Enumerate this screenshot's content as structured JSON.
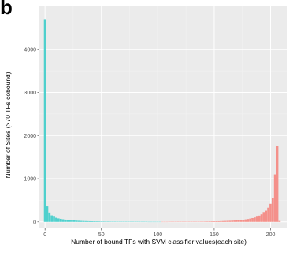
{
  "panel_label": "b",
  "colors": {
    "background": "#ffffff",
    "panel": "#ebebeb",
    "grid_major": "#ffffff",
    "grid_minor": "#f2f2f2",
    "low_bars": "#4fd0cd",
    "high_bars": "#f4908a"
  },
  "chart_data": {
    "type": "bar",
    "title": "",
    "xlabel": "Number of bound TFs with SVM classifier values(each site)",
    "ylabel": "Number of Sites  (>70 TFs cobound)",
    "x_ticks": [
      0,
      50,
      100,
      150,
      200
    ],
    "y_ticks": [
      0,
      1000,
      2000,
      3000,
      4000
    ],
    "xlim": [
      -5,
      215
    ],
    "ylim": [
      -150,
      5000
    ],
    "bin_width": 2,
    "grid": true,
    "legend": "none",
    "split_x": 104,
    "series": [
      {
        "color": "low_bars",
        "x": [
          0,
          2,
          4,
          6,
          8,
          10,
          12,
          14,
          16,
          18,
          20,
          22,
          24,
          26,
          28,
          30,
          32,
          34,
          36,
          38,
          40,
          42,
          44,
          46,
          48,
          50,
          52,
          54,
          56,
          58,
          60,
          62,
          64,
          66,
          68,
          70,
          72,
          74,
          76,
          78,
          80,
          82,
          84,
          86,
          88,
          90,
          92,
          94,
          96,
          98,
          100,
          102
        ],
        "values": [
          4700,
          360,
          200,
          150,
          120,
          95,
          80,
          70,
          60,
          52,
          45,
          40,
          36,
          32,
          28,
          25,
          22,
          20,
          18,
          16,
          15,
          14,
          13,
          12,
          11,
          10,
          10,
          9,
          9,
          8,
          8,
          8,
          7,
          7,
          6,
          6,
          5,
          5,
          5,
          4,
          4,
          4,
          3,
          3,
          3,
          3,
          2,
          2,
          2,
          2,
          2,
          2
        ]
      },
      {
        "color": "high_bars",
        "x": [
          104,
          106,
          108,
          110,
          112,
          114,
          116,
          118,
          120,
          122,
          124,
          126,
          128,
          130,
          132,
          134,
          136,
          138,
          140,
          142,
          144,
          146,
          148,
          150,
          152,
          154,
          156,
          158,
          160,
          162,
          164,
          166,
          168,
          170,
          172,
          174,
          176,
          178,
          180,
          182,
          184,
          186,
          188,
          190,
          192,
          194,
          196,
          198,
          200,
          202,
          204,
          206,
          208
        ],
        "values": [
          2,
          2,
          2,
          3,
          3,
          3,
          3,
          4,
          4,
          4,
          5,
          5,
          5,
          6,
          6,
          7,
          7,
          8,
          8,
          9,
          10,
          11,
          12,
          13,
          14,
          15,
          17,
          19,
          21,
          23,
          25,
          28,
          31,
          35,
          40,
          45,
          50,
          58,
          66,
          76,
          88,
          102,
          120,
          145,
          175,
          210,
          260,
          330,
          420,
          560,
          1100,
          1760,
          20
        ]
      }
    ]
  }
}
